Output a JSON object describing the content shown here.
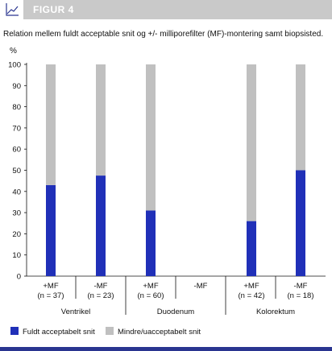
{
  "header": {
    "figure_label": "FIGUR 4",
    "icon": "line-chart-icon"
  },
  "subtitle": "Relation mellem fuldt acceptable snit og +/- milliporefilter (MF)-montering samt biopsisted.",
  "colors": {
    "accepted": "#2030b8",
    "not_accepted": "#c0c0c0",
    "header_bg": "#c9c9c9",
    "bottom_rule": "#2a3590"
  },
  "chart_data": {
    "type": "bar",
    "stacked": true,
    "ylabel": "%",
    "ylim": [
      0,
      100
    ],
    "yticks": [
      "0",
      "10",
      "20",
      "30",
      "40",
      "50",
      "60",
      "70",
      "80",
      "90",
      "100"
    ],
    "categories": [
      {
        "label": "+MF",
        "n": "(n = 37)"
      },
      {
        "label": "-MF",
        "n": "(n = 23)"
      },
      {
        "label": "+MF",
        "n": "(n = 60)"
      },
      {
        "label": "-MF",
        "n": ""
      },
      {
        "label": "+MF",
        "n": "(n = 42)"
      },
      {
        "label": "-MF",
        "n": "(n = 18)"
      }
    ],
    "groups": [
      "Ventrikel",
      "Duodenum",
      "Kolorektum"
    ],
    "series": [
      {
        "name": "Fuldt acceptabelt snit",
        "values": [
          43,
          47.5,
          31,
          null,
          26,
          50
        ]
      },
      {
        "name": "Mindre/uacceptabelt snit",
        "values": [
          57,
          52.5,
          69,
          null,
          74,
          50
        ]
      }
    ],
    "legend": [
      "Fuldt acceptabelt snit",
      "Mindre/uacceptabelt snit"
    ],
    "legend_position": "bottom",
    "grid": false
  }
}
